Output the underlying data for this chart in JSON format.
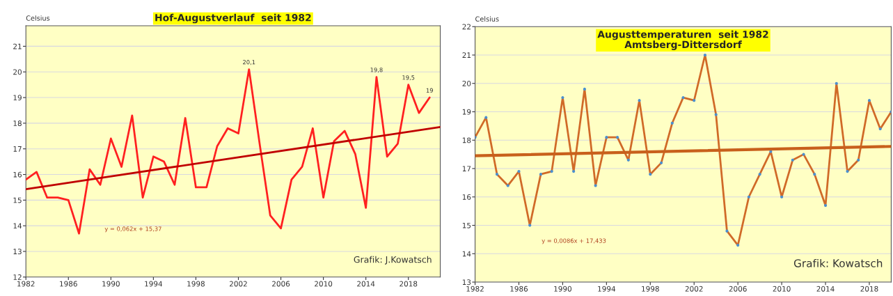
{
  "chart_data": [
    {
      "type": "line",
      "title": "Hof-Augustverlauf  seit 1982",
      "ylabel": "Celsius",
      "x": [
        1982,
        1983,
        1984,
        1985,
        1986,
        1987,
        1988,
        1989,
        1990,
        1991,
        1992,
        1993,
        1994,
        1995,
        1996,
        1997,
        1998,
        1999,
        2000,
        2001,
        2002,
        2003,
        2004,
        2005,
        2006,
        2007,
        2008,
        2009,
        2010,
        2011,
        2012,
        2013,
        2014,
        2015,
        2016,
        2017,
        2018,
        2019,
        2020
      ],
      "series": [
        {
          "color": "#ff2020",
          "values": [
            15.8,
            16.1,
            15.1,
            15.1,
            15.0,
            13.7,
            16.2,
            15.6,
            17.4,
            16.3,
            18.3,
            15.1,
            16.7,
            16.5,
            15.6,
            18.2,
            15.5,
            15.5,
            17.1,
            17.8,
            17.6,
            20.1,
            17.2,
            14.4,
            13.9,
            15.8,
            16.3,
            17.8,
            15.1,
            17.3,
            17.7,
            16.8,
            14.7,
            19.8,
            16.7,
            17.2,
            19.5,
            18.4,
            19.0
          ],
          "value_labels": [
            null,
            null,
            null,
            null,
            null,
            null,
            null,
            null,
            null,
            null,
            null,
            null,
            null,
            null,
            null,
            null,
            null,
            null,
            null,
            null,
            null,
            "20,1",
            null,
            null,
            null,
            null,
            null,
            null,
            null,
            null,
            null,
            null,
            null,
            "19,8",
            null,
            null,
            "19,5",
            null,
            "19"
          ]
        },
        {
          "type": "line",
          "color": "#c00000",
          "x": [
            1982,
            2021
          ],
          "values": [
            15.43,
            17.85
          ]
        }
      ],
      "xlim": [
        1982,
        2021
      ],
      "ylim": [
        12,
        21.8
      ],
      "xticks": [
        1982,
        1986,
        1990,
        1994,
        1998,
        2002,
        2006,
        2010,
        2014,
        2018
      ],
      "yticks": [
        12,
        13,
        14,
        15,
        16,
        17,
        18,
        19,
        20,
        21
      ],
      "grid": "y",
      "legend": false,
      "annotations": [
        "y = 0,062x + 15,37",
        "Grafik: J.Kowatsch"
      ]
    },
    {
      "type": "line",
      "title": "Augusttemperaturen  seit 1982\nAmtsberg-Dittersdorf",
      "ylabel": "Celsius",
      "x": [
        1982,
        1983,
        1984,
        1985,
        1986,
        1987,
        1988,
        1989,
        1990,
        1991,
        1992,
        1993,
        1994,
        1995,
        1996,
        1997,
        1998,
        1999,
        2000,
        2001,
        2002,
        2003,
        2004,
        2005,
        2006,
        2007,
        2008,
        2009,
        2010,
        2011,
        2012,
        2013,
        2014,
        2015,
        2016,
        2017,
        2018,
        2019,
        2020
      ],
      "series": [
        {
          "color": "#d06a28",
          "marker": "circle",
          "values": [
            18.1,
            18.8,
            16.8,
            16.4,
            16.9,
            15.0,
            16.8,
            16.9,
            19.5,
            16.9,
            19.8,
            16.4,
            18.1,
            18.1,
            17.3,
            19.4,
            16.8,
            17.2,
            18.6,
            19.5,
            19.4,
            21.0,
            18.9,
            14.8,
            14.3,
            16.0,
            16.8,
            17.6,
            16.0,
            17.3,
            17.5,
            16.8,
            15.7,
            20.0,
            16.9,
            17.3,
            19.4,
            18.4,
            19.0
          ]
        },
        {
          "type": "line",
          "color": "#c8601c",
          "x": [
            1982,
            2020
          ],
          "values": [
            17.45,
            17.78
          ]
        }
      ],
      "xlim": [
        1982,
        2020
      ],
      "ylim": [
        13,
        22
      ],
      "xticks": [
        1982,
        1986,
        1990,
        1994,
        1998,
        2002,
        2006,
        2010,
        2014,
        2018
      ],
      "yticks": [
        13,
        14,
        15,
        16,
        17,
        18,
        19,
        20,
        21,
        22
      ],
      "grid": "y",
      "legend": false,
      "annotations": [
        "y = 0,0086x + 17,433",
        "Grafik: Kowatsch"
      ]
    }
  ]
}
